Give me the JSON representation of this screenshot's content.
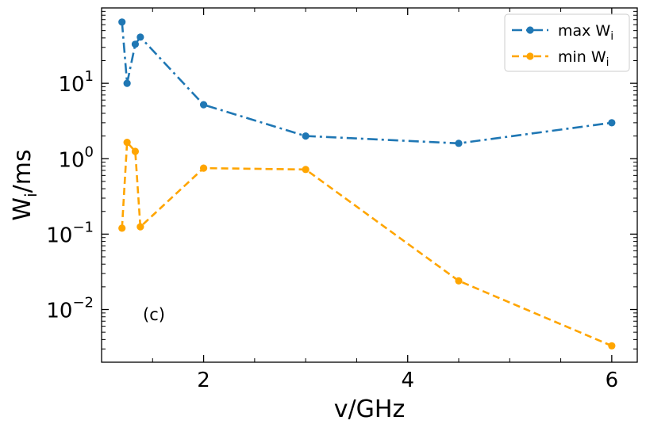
{
  "chart_data": {
    "type": "line",
    "xlabel": "v/GHz",
    "ylabel": "Wi/ms",
    "ylabel_main": "W",
    "ylabel_sub": "i",
    "ylabel_unit": "/ms",
    "yscale": "log",
    "xlim": [
      1.0,
      6.25
    ],
    "ylim": [
      0.002,
      100
    ],
    "x_ticks": [
      2,
      4,
      6
    ],
    "x_tick_labels": [
      "2",
      "4",
      "6"
    ],
    "y_ticks": [
      0.01,
      0.1,
      1,
      10
    ],
    "y_tick_labels": [
      {
        "base": "10",
        "exp": "−2"
      },
      {
        "base": "10",
        "exp": "−1"
      },
      {
        "base": "10",
        "exp": "0"
      },
      {
        "base": "10",
        "exp": "1"
      }
    ],
    "annotation": "(c)",
    "legend_position": "top-right",
    "series": [
      {
        "name": "max Wi",
        "label_main": "max W",
        "label_sub": "i",
        "color": "#1f77b4",
        "linestyle": "dashdot",
        "x": [
          1.2,
          1.25,
          1.33,
          1.38,
          2.0,
          3.0,
          4.5,
          6.0
        ],
        "y": [
          65,
          10,
          33,
          41,
          5.2,
          2.0,
          1.6,
          3.0
        ]
      },
      {
        "name": "min Wi",
        "label_main": "min W",
        "label_sub": "i",
        "color": "#ffa500",
        "linestyle": "dashed",
        "x": [
          1.2,
          1.25,
          1.33,
          1.38,
          2.0,
          3.0,
          4.5,
          6.0
        ],
        "y": [
          0.12,
          1.65,
          1.25,
          0.125,
          0.75,
          0.72,
          0.024,
          0.0033
        ]
      }
    ]
  }
}
